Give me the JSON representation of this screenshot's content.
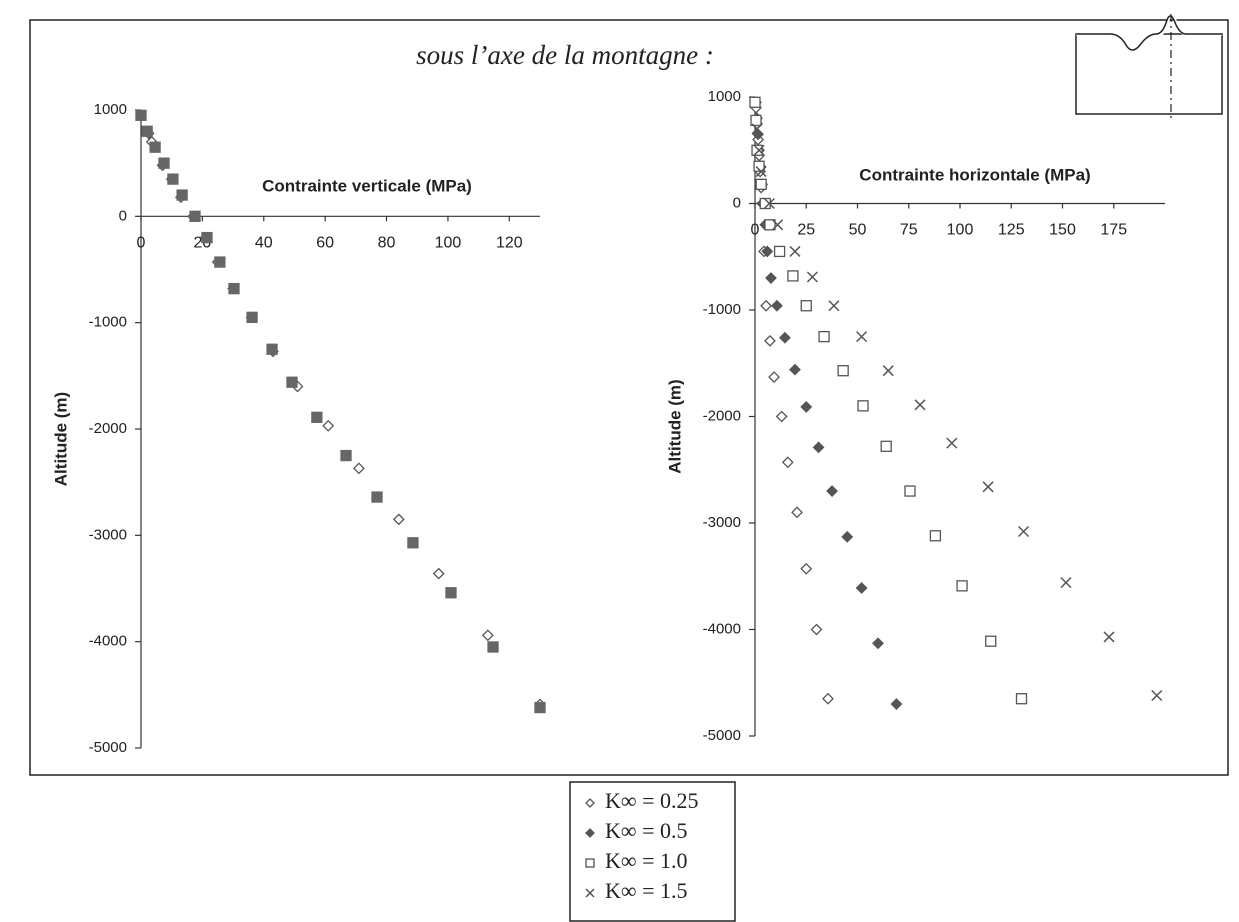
{
  "title": "sous l’axe de la montagne :",
  "legend": "bottom",
  "chart_data": [
    {
      "type": "scatter",
      "x_label": "Contrainte verticale (MPa)",
      "y_label": "Altitude (m)",
      "xlim": [
        0,
        130
      ],
      "xticks": [
        0,
        20,
        40,
        60,
        80,
        100,
        120
      ],
      "ylim": [
        -5000,
        1000
      ],
      "yticks": [
        1000,
        0,
        -1000,
        -2000,
        -3000,
        -4000,
        -5000
      ],
      "series": [
        {
          "name": "K∞ = 0.25",
          "marker": "diamond-open",
          "color": "#555",
          "x": [
            0,
            2.5,
            3.5,
            7,
            10,
            13,
            17,
            21,
            25,
            30,
            36,
            43,
            51,
            61,
            71,
            84,
            97,
            113,
            130
          ],
          "values": [
            950,
            780,
            700,
            480,
            350,
            180,
            0,
            -200,
            -430,
            -680,
            -950,
            -1270,
            -1600,
            -1970,
            -2370,
            -2850,
            -3360,
            -3940,
            -4590
          ]
        },
        {
          "name": "K∞ = 1.0",
          "marker": "square-filled",
          "color": "#666",
          "x": [
            0,
            2,
            4.6,
            7.5,
            10.4,
            13.4,
            17.6,
            21.5,
            25.7,
            30.3,
            36.2,
            42.7,
            49.2,
            57.3,
            66.8,
            76.9,
            88.6,
            101,
            114.7,
            130
          ],
          "values": [
            950,
            800,
            650,
            500,
            350,
            200,
            0,
            -200,
            -430,
            -680,
            -950,
            -1250,
            -1560,
            -1890,
            -2250,
            -2640,
            -3070,
            -3540,
            -4050,
            -4620
          ]
        }
      ]
    },
    {
      "type": "scatter",
      "x_label": "Contrainte horizontale (MPa)",
      "y_label": "Altitude (m)",
      "xlim": [
        0,
        200
      ],
      "xticks": [
        0,
        25,
        50,
        75,
        100,
        125,
        150,
        175
      ],
      "ylim": [
        -5000,
        1000
      ],
      "yticks": [
        1000,
        0,
        -1000,
        -2000,
        -3000,
        -4000,
        -5000
      ],
      "series": [
        {
          "name": "K∞ = 0.25",
          "marker": "diamond-open",
          "color": "#555",
          "x": [
            0.5,
            1,
            1.5,
            2,
            2.5,
            3,
            3.5,
            4.4,
            5.4,
            7.3,
            9.3,
            13,
            16,
            20.5,
            25,
            30,
            35.6
          ],
          "values": [
            900,
            750,
            600,
            450,
            300,
            150,
            0,
            -450,
            -960,
            -1290,
            -1630,
            -2000,
            -2430,
            -2900,
            -3430,
            -4000,
            -4650
          ]
        },
        {
          "name": "K∞ = 0.5",
          "marker": "diamond-filled",
          "color": "#555",
          "x": [
            0.5,
            1,
            1.5,
            2,
            2.5,
            3.5,
            4,
            5,
            6,
            7.8,
            10.7,
            14.6,
            19.5,
            25,
            31,
            37.6,
            45,
            52,
            60,
            69
          ],
          "values": [
            950,
            800,
            650,
            500,
            350,
            180,
            0,
            -200,
            -450,
            -700,
            -960,
            -1260,
            -1560,
            -1910,
            -2290,
            -2700,
            -3130,
            -3610,
            -4130,
            -4700
          ]
        },
        {
          "name": "K∞ = 1.0",
          "marker": "square-open",
          "color": "#555",
          "x": [
            0,
            0.5,
            1,
            2,
            3,
            5,
            7.3,
            12,
            18.5,
            25,
            33.7,
            43,
            52.7,
            64,
            75.6,
            88,
            101,
            115,
            130
          ],
          "values": [
            950,
            780,
            500,
            350,
            180,
            0,
            -200,
            -450,
            -680,
            -960,
            -1250,
            -1570,
            -1900,
            -2280,
            -2700,
            -3120,
            -3590,
            -4110,
            -4650
          ]
        },
        {
          "name": "K∞ = 1.5",
          "marker": "cross",
          "color": "#555",
          "x": [
            1,
            2,
            3,
            7,
            11,
            19.5,
            28,
            38.5,
            52,
            65,
            80.5,
            96,
            113.7,
            131,
            151.7,
            172.7,
            196
          ],
          "values": [
            700,
            500,
            300,
            0,
            -200,
            -450,
            -690,
            -960,
            -1250,
            -1570,
            -1890,
            -2250,
            -2660,
            -3080,
            -3560,
            -4070,
            -4620
          ]
        }
      ]
    }
  ]
}
